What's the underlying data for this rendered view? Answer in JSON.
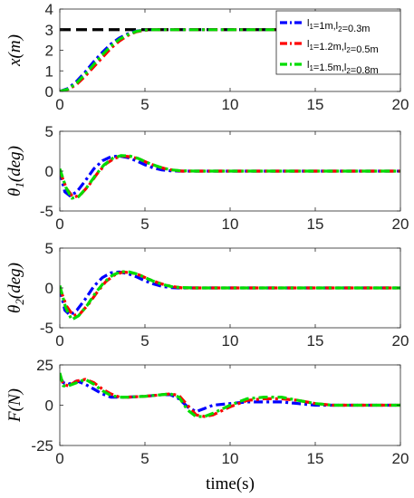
{
  "chart_data": [
    {
      "type": "line",
      "ylabel_main": "x",
      "ylabel_sub": "",
      "ylabel_unit": "(m)",
      "xlim": [
        0,
        20
      ],
      "ylim": [
        0,
        4
      ],
      "xticks": [
        0,
        5,
        10,
        15,
        20
      ],
      "yticks": [
        0,
        1,
        2,
        3,
        4
      ],
      "reference": {
        "y": 3,
        "color": "#000000"
      },
      "legend": {
        "position": "top-right",
        "entries": [
          {
            "l1": "1m",
            "l2": "0.3m",
            "color": "#0000ff"
          },
          {
            "l1": "1.2m",
            "l2": "0.5m",
            "color": "#ff0000"
          },
          {
            "l1": "1.5m",
            "l2": "0.8m",
            "color": "#00dd00"
          }
        ]
      },
      "series": [
        {
          "color": "#0000ff",
          "x": [
            0,
            0.5,
            1,
            1.5,
            2,
            2.5,
            3,
            3.5,
            4,
            4.5,
            5,
            5.5,
            6,
            20
          ],
          "y": [
            0,
            0.15,
            0.5,
            0.95,
            1.45,
            1.9,
            2.3,
            2.6,
            2.8,
            2.93,
            2.98,
            3.0,
            3.0,
            3.0
          ]
        },
        {
          "color": "#ff0000",
          "x": [
            0,
            0.5,
            1,
            1.5,
            2,
            2.5,
            3,
            3.5,
            4,
            4.5,
            5,
            5.5,
            6,
            20
          ],
          "y": [
            0,
            0.1,
            0.35,
            0.75,
            1.2,
            1.65,
            2.1,
            2.45,
            2.72,
            2.9,
            2.97,
            3.0,
            3.0,
            3.0
          ]
        },
        {
          "color": "#00dd00",
          "x": [
            0,
            0.5,
            1,
            1.5,
            2,
            2.5,
            3,
            3.5,
            4,
            4.5,
            5,
            5.5,
            6,
            20
          ],
          "y": [
            0,
            0.12,
            0.42,
            0.85,
            1.32,
            1.78,
            2.2,
            2.53,
            2.76,
            2.92,
            2.98,
            3.0,
            3.0,
            3.0
          ]
        }
      ]
    },
    {
      "type": "line",
      "ylabel_main": "θ",
      "ylabel_sub": "1",
      "ylabel_unit": "(deg)",
      "xlim": [
        0,
        20
      ],
      "ylim": [
        -5,
        5
      ],
      "xticks": [
        0,
        5,
        10,
        15,
        20
      ],
      "yticks": [
        -5,
        0,
        5
      ],
      "series": [
        {
          "color": "#0000ff",
          "x": [
            0,
            0.3,
            0.6,
            1,
            1.5,
            2,
            2.5,
            3,
            3.5,
            4,
            4.5,
            5,
            5.5,
            6,
            6.5,
            7,
            8,
            20
          ],
          "y": [
            0,
            -2.6,
            -3.1,
            -2.6,
            -1.2,
            0.3,
            1.3,
            1.8,
            1.9,
            1.7,
            1.3,
            0.8,
            0.4,
            0.15,
            0.05,
            0,
            0,
            0
          ]
        },
        {
          "color": "#ff0000",
          "x": [
            0,
            0.4,
            0.8,
            1.2,
            1.7,
            2.2,
            2.7,
            3.2,
            3.7,
            4.2,
            4.7,
            5.2,
            5.7,
            6.2,
            6.7,
            7.2,
            8,
            20
          ],
          "y": [
            0,
            -2.2,
            -3.3,
            -3.0,
            -1.8,
            -0.3,
            0.9,
            1.6,
            1.9,
            1.8,
            1.5,
            1.0,
            0.6,
            0.3,
            0.1,
            0,
            0,
            0
          ]
        },
        {
          "color": "#00dd00",
          "x": [
            0,
            0.35,
            0.7,
            1.1,
            1.6,
            2.1,
            2.6,
            3.1,
            3.6,
            4.1,
            4.6,
            5.1,
            5.6,
            6.1,
            6.6,
            7.1,
            8,
            20
          ],
          "y": [
            0.3,
            -2.0,
            -3.4,
            -3.2,
            -2.0,
            -0.5,
            0.8,
            1.6,
            1.95,
            1.9,
            1.6,
            1.1,
            0.7,
            0.35,
            0.15,
            0.05,
            0,
            0
          ]
        }
      ]
    },
    {
      "type": "line",
      "ylabel_main": "θ",
      "ylabel_sub": "2",
      "ylabel_unit": "(deg)",
      "xlim": [
        0,
        20
      ],
      "ylim": [
        -5,
        5
      ],
      "xticks": [
        0,
        5,
        10,
        15,
        20
      ],
      "yticks": [
        -5,
        0,
        5
      ],
      "series": [
        {
          "color": "#0000ff",
          "x": [
            0,
            0.3,
            0.6,
            1,
            1.5,
            2,
            2.5,
            3,
            3.5,
            4,
            4.5,
            5,
            5.5,
            6,
            6.5,
            7,
            8,
            20
          ],
          "y": [
            0,
            -2.8,
            -3.4,
            -2.8,
            -1.4,
            0.2,
            1.3,
            1.9,
            2.0,
            1.8,
            1.4,
            0.9,
            0.5,
            0.2,
            0.05,
            0,
            0,
            0
          ]
        },
        {
          "color": "#ff0000",
          "x": [
            0,
            0.4,
            0.8,
            1.2,
            1.7,
            2.2,
            2.7,
            3.2,
            3.7,
            4.2,
            4.7,
            5.2,
            5.7,
            6.2,
            6.7,
            7.2,
            8,
            20
          ],
          "y": [
            0,
            -2.3,
            -3.5,
            -3.2,
            -2.0,
            -0.5,
            0.8,
            1.6,
            2.0,
            1.9,
            1.6,
            1.1,
            0.7,
            0.35,
            0.15,
            0,
            0,
            0
          ]
        },
        {
          "color": "#00dd00",
          "x": [
            0,
            0.35,
            0.7,
            1.1,
            1.6,
            2.1,
            2.6,
            3.1,
            3.6,
            4.1,
            4.6,
            5.1,
            5.6,
            6.1,
            6.6,
            7.1,
            8,
            20
          ],
          "y": [
            0.3,
            -2.5,
            -4.0,
            -3.5,
            -2.2,
            -0.6,
            0.7,
            1.6,
            2.05,
            2.0,
            1.7,
            1.2,
            0.75,
            0.4,
            0.15,
            0.05,
            0,
            0
          ]
        }
      ]
    },
    {
      "type": "line",
      "ylabel_main": "F",
      "ylabel_sub": "",
      "ylabel_unit": "(N)",
      "xlabel": "time(s)",
      "xlim": [
        0,
        20
      ],
      "ylim": [
        -25,
        25
      ],
      "xticks": [
        0,
        5,
        10,
        15,
        20
      ],
      "yticks": [
        -25,
        0,
        25
      ],
      "series": [
        {
          "color": "#0000ff",
          "x": [
            0,
            0.2,
            0.5,
            1,
            1.5,
            2,
            2.5,
            3,
            3.5,
            4,
            5,
            6,
            6.5,
            7,
            7.5,
            8,
            8.5,
            9,
            10,
            11,
            12,
            13,
            14,
            15,
            16,
            17,
            18,
            20
          ],
          "y": [
            18,
            14,
            13,
            15,
            13,
            10,
            7,
            5,
            5,
            5,
            5.5,
            6.5,
            6.5,
            4,
            -1,
            -4,
            -2,
            0,
            1,
            2,
            2,
            2,
            1,
            0,
            0,
            0,
            0,
            0
          ]
        },
        {
          "color": "#ff0000",
          "x": [
            0,
            0.2,
            0.5,
            1,
            1.5,
            2,
            2.5,
            3,
            3.5,
            4,
            5,
            6,
            6.5,
            7,
            7.5,
            8,
            8.5,
            9,
            10,
            11,
            12,
            13,
            14,
            15,
            16,
            17,
            18,
            20
          ],
          "y": [
            19,
            13,
            12,
            15,
            16,
            14,
            10,
            7,
            5,
            5,
            5.5,
            6.5,
            7,
            6,
            0,
            -6,
            -7,
            -6,
            -1,
            3,
            4,
            4,
            3,
            1,
            0,
            0,
            0,
            0
          ]
        },
        {
          "color": "#00dd00",
          "x": [
            0,
            0.2,
            0.5,
            1,
            1.5,
            2,
            2.5,
            3,
            3.5,
            4,
            5,
            6,
            6.5,
            7,
            7.5,
            8,
            8.5,
            9,
            10,
            11,
            12,
            13,
            14,
            15,
            16,
            17,
            18,
            20
          ],
          "y": [
            20,
            12,
            12,
            14,
            16,
            13,
            9,
            6,
            5,
            5,
            5.5,
            6.5,
            7,
            5,
            -3,
            -7,
            -7,
            -5,
            0,
            4,
            5,
            5,
            3,
            1,
            0,
            0,
            0,
            0
          ]
        }
      ]
    }
  ]
}
